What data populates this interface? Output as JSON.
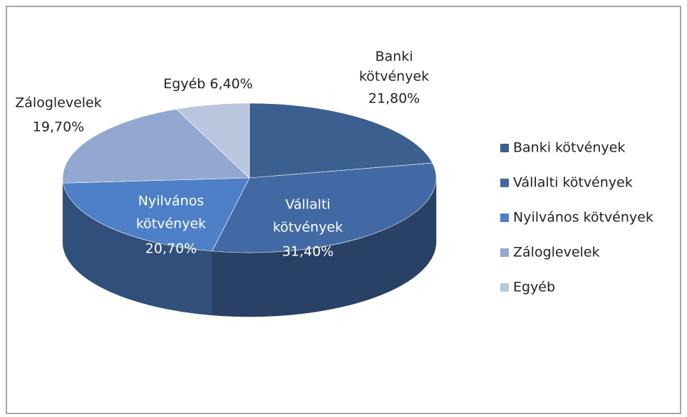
{
  "chart_data": {
    "type": "pie",
    "categories": [
      "Banki kötvények",
      "Vállalti kötvények",
      "Nyilvános kötvények",
      "Záloglevelek",
      "Egyéb"
    ],
    "values": [
      21.8,
      31.4,
      20.7,
      19.7,
      6.4
    ],
    "value_labels": [
      "21,80%",
      "31,40%",
      "20,70%",
      "19,70%",
      "6,40%"
    ],
    "colors": [
      "#3b5f8e",
      "#4269a3",
      "#4d80c6",
      "#93a8d0",
      "#bac6de"
    ],
    "legend": "right"
  }
}
